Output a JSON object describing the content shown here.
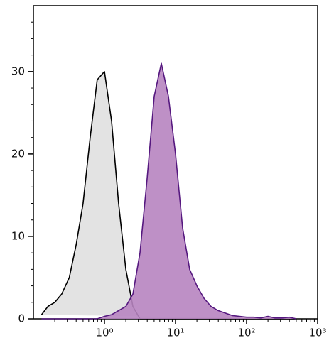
{
  "chart_data": {
    "type": "histogram-overlay",
    "x": [
      0.13,
      0.16,
      0.2,
      0.25,
      0.32,
      0.4,
      0.5,
      0.63,
      0.79,
      1,
      1.26,
      1.58,
      2,
      2.51,
      3.16,
      3.98,
      5.01,
      6.31,
      7.94,
      10,
      12.6,
      15.8,
      20,
      25.1,
      31.6,
      39.8,
      50.1,
      63.1,
      79.4,
      100,
      126,
      158,
      200,
      251,
      316,
      398,
      501
    ],
    "series": [
      {
        "color": "#000000",
        "fill": "#e0e0e0",
        "values": [
          0.5,
          1.5,
          2,
          3,
          5,
          9,
          14,
          22,
          29,
          30,
          24,
          14,
          6,
          1.5,
          0,
          0,
          0,
          0,
          0,
          0,
          0,
          0,
          0,
          0,
          0,
          0,
          0,
          0,
          0,
          0,
          0,
          0,
          0,
          0,
          0,
          0,
          0
        ]
      },
      {
        "color": "#55187f",
        "fill": "#b784c0",
        "values": [
          0,
          0,
          0,
          0,
          0,
          0,
          0,
          0,
          0,
          0.3,
          0.5,
          1,
          1.5,
          3,
          8,
          17,
          27,
          31,
          27,
          20,
          11,
          6,
          4,
          2.5,
          1.5,
          1,
          0.7,
          0.4,
          0.3,
          0.2,
          0.2,
          0.1,
          0.3,
          0.1,
          0.1,
          0.2,
          0
        ]
      }
    ],
    "xlog": true,
    "xlim": [
      0.1,
      1000
    ],
    "xticks": [
      {
        "value": 1,
        "label": "10⁰"
      },
      {
        "value": 10,
        "label": "10¹"
      },
      {
        "value": 100,
        "label": "10²"
      },
      {
        "value": 1000,
        "label": "10³"
      }
    ],
    "xminorticks": [
      0.2,
      0.3,
      0.4,
      0.5,
      0.6,
      0.7,
      0.8,
      0.9,
      2,
      3,
      4,
      5,
      6,
      7,
      8,
      9,
      20,
      30,
      40,
      50,
      60,
      70,
      80,
      90,
      200,
      300,
      400,
      500,
      600,
      700,
      800,
      900
    ],
    "ylim": [
      0,
      38
    ],
    "yticks": [
      0,
      10,
      20,
      30
    ],
    "yminorticks": [
      2,
      4,
      6,
      8,
      12,
      14,
      16,
      18,
      22,
      24,
      26,
      28,
      32,
      34,
      36
    ]
  }
}
